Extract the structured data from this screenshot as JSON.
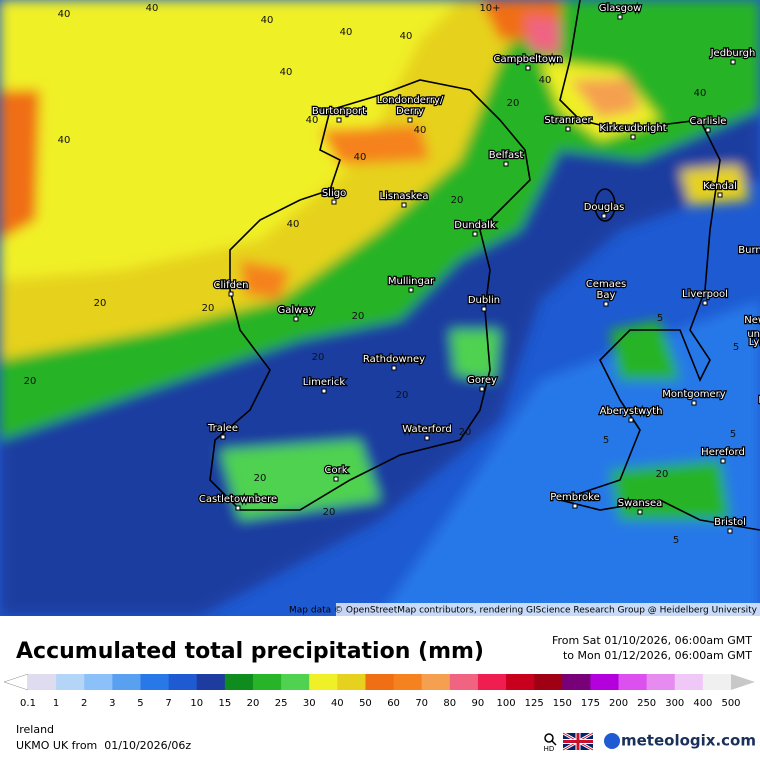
{
  "header": {
    "title": "Accumulated total precipitation (mm)",
    "period_from": "From Sat 01/10/2026, 06:00am GMT",
    "period_to": "to Mon 01/12/2026, 06:00am GMT"
  },
  "map": {
    "places": [
      "Glasgow",
      "Jedburgh",
      "Campbeltown",
      "Burtonport",
      "Londonderry/",
      "Derry",
      "Stranraer",
      "Kirkcudbright",
      "Carlisle",
      "Belfast",
      "Sligo",
      "Lisnaskea",
      "Kendal",
      "Douglas",
      "Dundalk",
      "Burn",
      "Clifden",
      "Mullingar",
      "Cemaes",
      "Bay",
      "Liverpool",
      "Dublin",
      "Galway",
      "Newcastle",
      "under",
      "Lyme",
      "Rathdowney",
      "Limerick",
      "Gorey",
      "Montgomery",
      "Birm",
      "Aberystwyth",
      "Tralee",
      "Waterford",
      "Hereford",
      "Cork",
      "Pembroke",
      "Castletownbere",
      "Swansea",
      "Bristol"
    ],
    "contour_labels": [
      "40",
      "40",
      "40",
      "40",
      "40",
      "40",
      "40",
      "40",
      "40",
      "40",
      "40",
      "40",
      "40",
      "20",
      "20",
      "20",
      "20",
      "20",
      "20",
      "20",
      "20",
      "20",
      "20",
      "20",
      "20",
      "5",
      "5",
      "5",
      "5",
      "5",
      "10+"
    ],
    "attribution": "Map data © OpenStreetMap contributors, rendering GIScience Research Group @ Heidelberg University"
  },
  "legend": {
    "ticks": [
      0.1,
      1,
      2,
      3,
      5,
      7,
      10,
      15,
      20,
      25,
      30,
      40,
      50,
      60,
      70,
      80,
      90,
      100,
      125,
      150,
      175,
      200,
      250,
      300,
      400,
      500
    ],
    "colors": [
      "#e0dcf0",
      "#b4d4f8",
      "#8cc0f8",
      "#5aa0f0",
      "#2878e8",
      "#1e5ad2",
      "#1e3ca0",
      "#0f8c1e",
      "#28b428",
      "#50d250",
      "#f0f028",
      "#e6d21e",
      "#f06e14",
      "#f5821e",
      "#f5a050",
      "#f06482",
      "#f01e50",
      "#c8001e",
      "#a00014",
      "#780078",
      "#b400dc",
      "#dc50f0",
      "#e68cf0",
      "#f0c8f8",
      "#f0f0f0",
      "#c8c8c8"
    ]
  },
  "footer": {
    "region": "Ireland",
    "model": "UKMO UK from  01/10/2026/06z",
    "hd": "HD",
    "brand": "meteologix.com"
  }
}
